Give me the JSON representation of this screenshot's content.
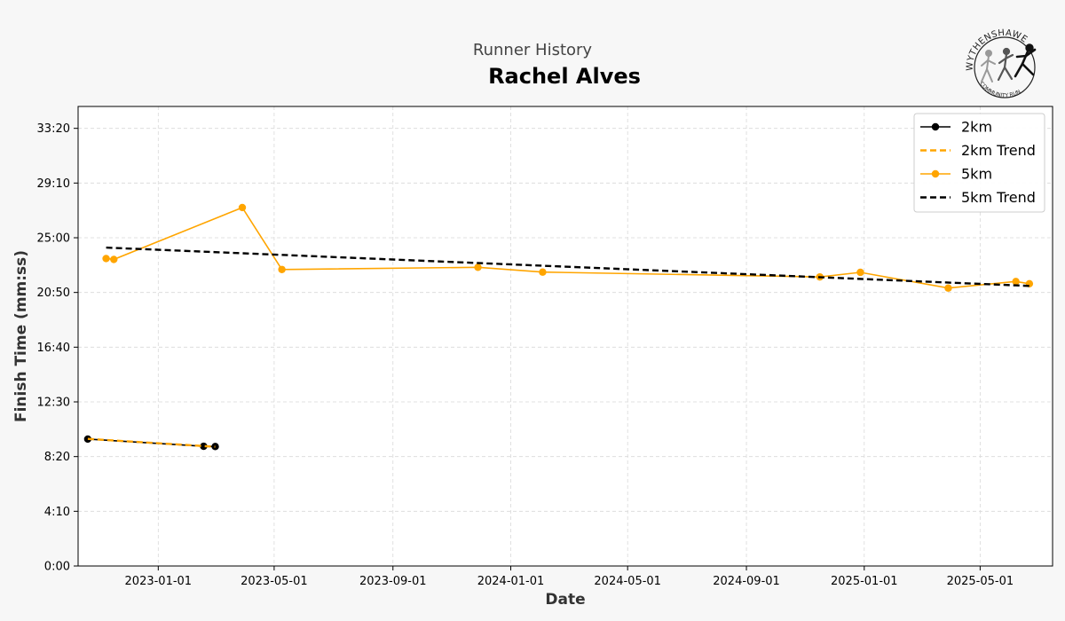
{
  "header": {
    "subtitle": "Runner History",
    "title": "Rachel Alves"
  },
  "logo": {
    "top_text": "WYTHENSHAWE",
    "bottom_text": "COMMUNITY RUN",
    "icon": "running-figures-logo"
  },
  "colors": {
    "series_2km": "#000000",
    "trend_2km": "#FFA500",
    "series_5km": "#FFA500",
    "trend_5km": "#000000",
    "background": "#f7f7f7",
    "plot_background": "#ffffff",
    "grid": "#d9d9d9"
  },
  "chart_data": {
    "type": "line",
    "title": "Rachel Alves",
    "subtitle": "Runner History",
    "xlabel": "Date",
    "ylabel": "Finish Time (mm:ss)",
    "x_type": "date",
    "xlim": [
      "2022-10-10",
      "2025-07-15"
    ],
    "ylim_seconds": [
      0,
      2100
    ],
    "x_ticks": [
      "2023-01-01",
      "2023-05-01",
      "2023-09-01",
      "2024-01-01",
      "2024-05-01",
      "2024-09-01",
      "2025-01-01",
      "2025-05-01"
    ],
    "y_ticks": [
      {
        "label": "0:00",
        "value": 0
      },
      {
        "label": "4:10",
        "value": 250
      },
      {
        "label": "8:20",
        "value": 500
      },
      {
        "label": "12:30",
        "value": 750
      },
      {
        "label": "16:40",
        "value": 1000
      },
      {
        "label": "20:50",
        "value": 1250
      },
      {
        "label": "25:00",
        "value": 1500
      },
      {
        "label": "29:10",
        "value": 1750
      },
      {
        "label": "33:20",
        "value": 2000
      }
    ],
    "grid": true,
    "legend_position": "top-right",
    "series": [
      {
        "name": "2km",
        "style": "solid-marker",
        "color": "#000000",
        "points": [
          {
            "date": "2022-10-20",
            "value": 580
          },
          {
            "date": "2023-02-17",
            "value": 547
          },
          {
            "date": "2023-03-01",
            "value": 546
          }
        ]
      },
      {
        "name": "2km Trend",
        "style": "dashed",
        "color": "#FFA500",
        "points": [
          {
            "date": "2022-10-20",
            "value": 581
          },
          {
            "date": "2023-03-01",
            "value": 545
          }
        ]
      },
      {
        "name": "5km",
        "style": "solid-marker",
        "color": "#FFA500",
        "points": [
          {
            "date": "2022-11-08",
            "value": 1405
          },
          {
            "date": "2022-11-16",
            "value": 1401
          },
          {
            "date": "2023-03-29",
            "value": 1638
          },
          {
            "date": "2023-05-09",
            "value": 1355
          },
          {
            "date": "2023-11-28",
            "value": 1365
          },
          {
            "date": "2024-02-03",
            "value": 1343
          },
          {
            "date": "2024-11-16",
            "value": 1321
          },
          {
            "date": "2024-12-28",
            "value": 1342
          },
          {
            "date": "2025-03-29",
            "value": 1270
          },
          {
            "date": "2025-06-07",
            "value": 1300
          },
          {
            "date": "2025-06-21",
            "value": 1290
          }
        ]
      },
      {
        "name": "5km Trend",
        "style": "dashed",
        "color": "#000000",
        "points": [
          {
            "date": "2022-11-08",
            "value": 1455
          },
          {
            "date": "2025-06-21",
            "value": 1280
          }
        ]
      }
    ]
  }
}
